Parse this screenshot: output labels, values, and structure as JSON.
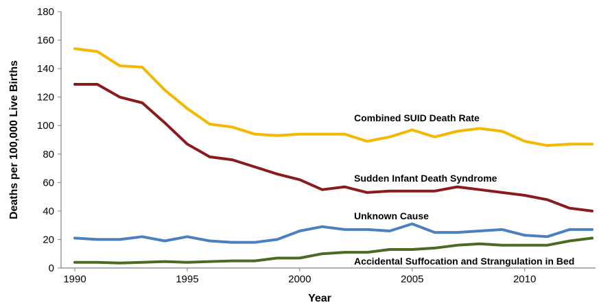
{
  "chart_data": {
    "type": "line",
    "title": "",
    "xlabel": "Year",
    "ylabel": "Deaths per 100,000 Live Births",
    "xlim": [
      1990,
      2013
    ],
    "ylim": [
      0,
      180
    ],
    "x_ticks": [
      1990,
      1995,
      2000,
      2005,
      2010
    ],
    "y_ticks": [
      0,
      20,
      40,
      60,
      80,
      100,
      120,
      140,
      160,
      180
    ],
    "grid": false,
    "legend": "inline labels near each series",
    "x": [
      1990,
      1991,
      1992,
      1993,
      1994,
      1995,
      1996,
      1997,
      1998,
      1999,
      2000,
      2001,
      2002,
      2003,
      2004,
      2005,
      2006,
      2007,
      2008,
      2009,
      2010,
      2011,
      2012,
      2013
    ],
    "series": [
      {
        "name": "Combined SUID Death Rate",
        "color": "#f5b800",
        "values": [
          154,
          152,
          142,
          141,
          125,
          112,
          101,
          99,
          94,
          93,
          94,
          94,
          94,
          89,
          92,
          97,
          92,
          96,
          98,
          96,
          89,
          86,
          87,
          87
        ]
      },
      {
        "name": "Sudden Infant Death Syndrome",
        "color": "#8b1a1e",
        "values": [
          129,
          129,
          120,
          116,
          102,
          87,
          78,
          76,
          71,
          66,
          62,
          55,
          57,
          53,
          54,
          54,
          54,
          57,
          55,
          53,
          51,
          48,
          42,
          40
        ]
      },
      {
        "name": "Unknown Cause",
        "color": "#4a7fc1",
        "values": [
          21,
          20,
          20,
          22,
          19,
          22,
          19,
          18,
          18,
          20,
          26,
          29,
          27,
          27,
          26,
          31,
          25,
          25,
          26,
          27,
          23,
          22,
          27,
          27
        ]
      },
      {
        "name": "Accidental Suffocation and Strangulation in Bed",
        "color": "#4b6b22",
        "values": [
          4,
          4,
          3.5,
          4,
          4.5,
          4,
          4.5,
          5,
          5,
          7,
          7,
          10,
          11,
          11,
          13,
          13,
          14,
          16,
          17,
          16,
          16,
          16,
          19,
          21
        ]
      }
    ]
  }
}
